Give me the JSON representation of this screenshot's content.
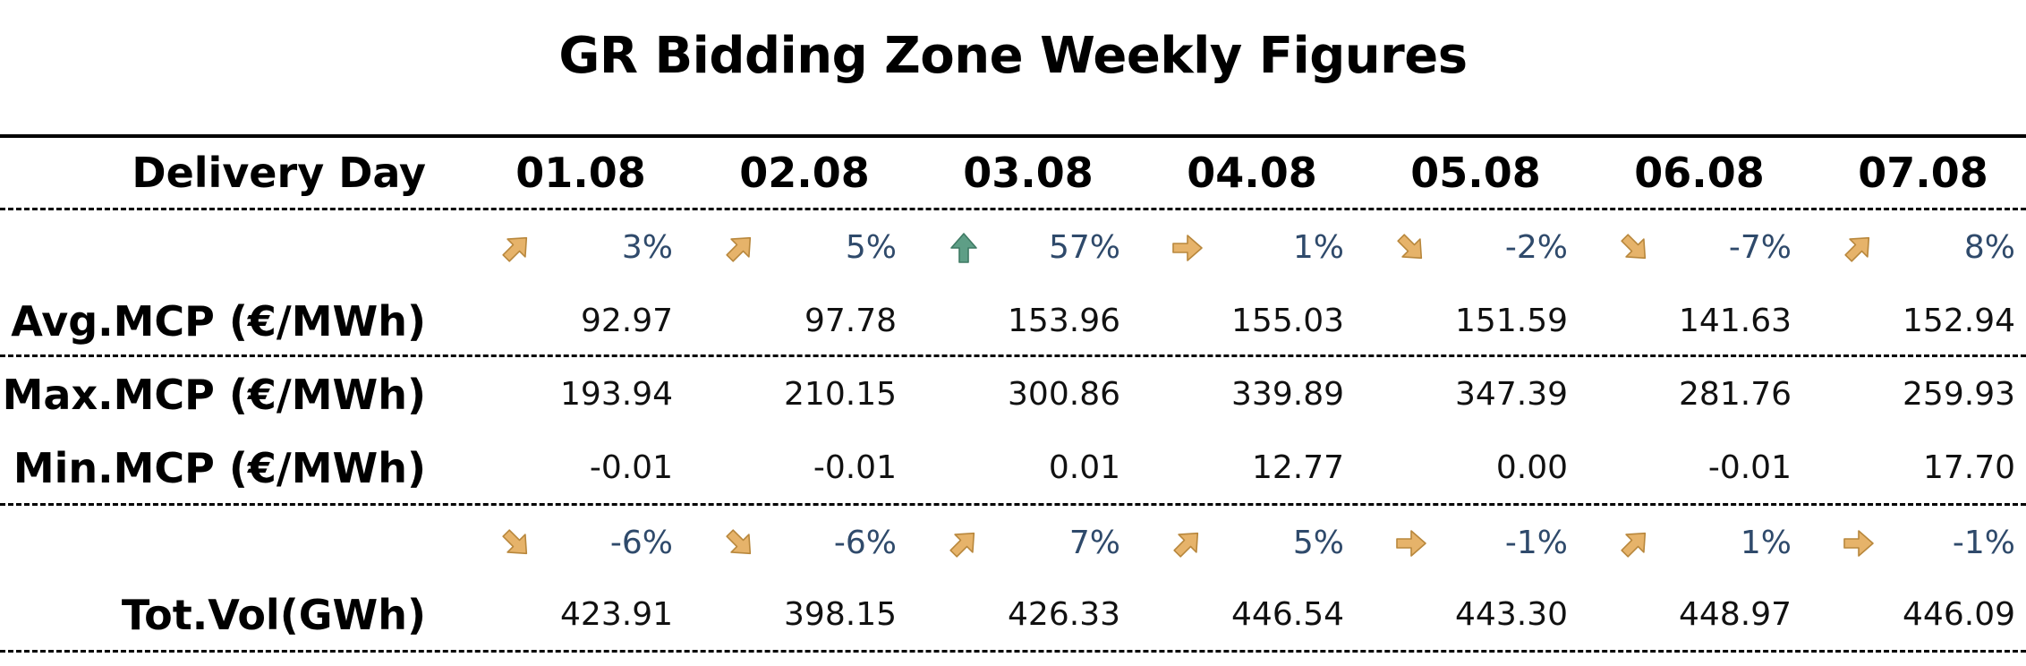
{
  "title": "GR Bidding Zone Weekly Figures",
  "header": {
    "label": "Delivery Day",
    "days": [
      "01.08",
      "02.08",
      "03.08",
      "04.08",
      "05.08",
      "06.08",
      "07.08"
    ]
  },
  "colors": {
    "arrow_gold": "#e6b36a",
    "arrow_gold_stroke": "#b8873c",
    "arrow_green": "#5e9e86",
    "arrow_green_stroke": "#3f7a64",
    "pct_text": "#2f4a6b"
  },
  "mcp_change": {
    "pct": [
      "3%",
      "5%",
      "57%",
      "1%",
      "-2%",
      "-7%",
      "8%"
    ],
    "icons": [
      "arrow-up-right-icon",
      "arrow-up-right-icon",
      "arrow-up-icon",
      "arrow-right-icon",
      "arrow-down-right-icon",
      "arrow-down-right-icon",
      "arrow-up-right-icon"
    ]
  },
  "avg_mcp": {
    "label": "Avg.MCP (€/MWh)",
    "values": [
      "92.97",
      "97.78",
      "153.96",
      "155.03",
      "151.59",
      "141.63",
      "152.94"
    ]
  },
  "max_mcp": {
    "label": "Max.MCP (€/MWh)",
    "values": [
      "193.94",
      "210.15",
      "300.86",
      "339.89",
      "347.39",
      "281.76",
      "259.93"
    ]
  },
  "min_mcp": {
    "label": "Min.MCP (€/MWh)",
    "values": [
      "-0.01",
      "-0.01",
      "0.01",
      "12.77",
      "0.00",
      "-0.01",
      "17.70"
    ]
  },
  "vol_change": {
    "pct": [
      "-6%",
      "-6%",
      "7%",
      "5%",
      "-1%",
      "1%",
      "-1%"
    ],
    "icons": [
      "arrow-down-right-icon",
      "arrow-down-right-icon",
      "arrow-up-right-icon",
      "arrow-up-right-icon",
      "arrow-right-icon",
      "arrow-up-right-icon",
      "arrow-right-icon"
    ]
  },
  "tot_vol": {
    "label": "Tot.Vol(GWh)",
    "values": [
      "423.91",
      "398.15",
      "426.33",
      "446.54",
      "443.30",
      "448.97",
      "446.09"
    ]
  }
}
